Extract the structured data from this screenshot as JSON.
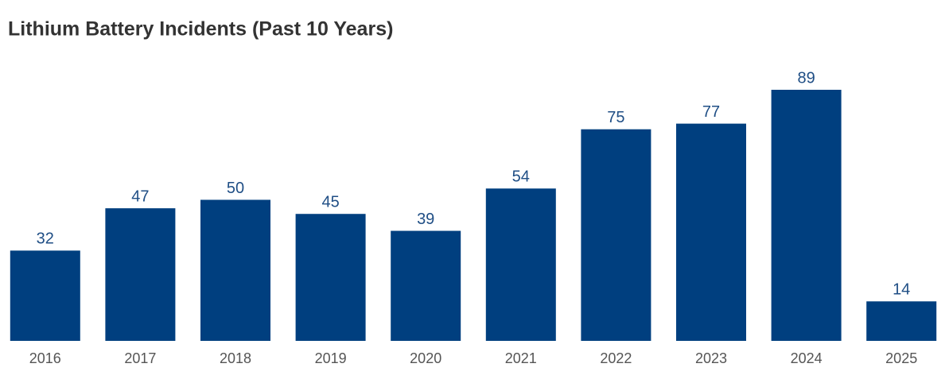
{
  "chart_data": {
    "type": "bar",
    "title": "Lithium Battery Incidents (Past 10 Years)",
    "categories": [
      "2016",
      "2017",
      "2018",
      "2019",
      "2020",
      "2021",
      "2022",
      "2023",
      "2024",
      "2025"
    ],
    "values": [
      32,
      47,
      50,
      45,
      39,
      54,
      75,
      77,
      89,
      14
    ],
    "color": "#003f7f",
    "grid": false
  }
}
